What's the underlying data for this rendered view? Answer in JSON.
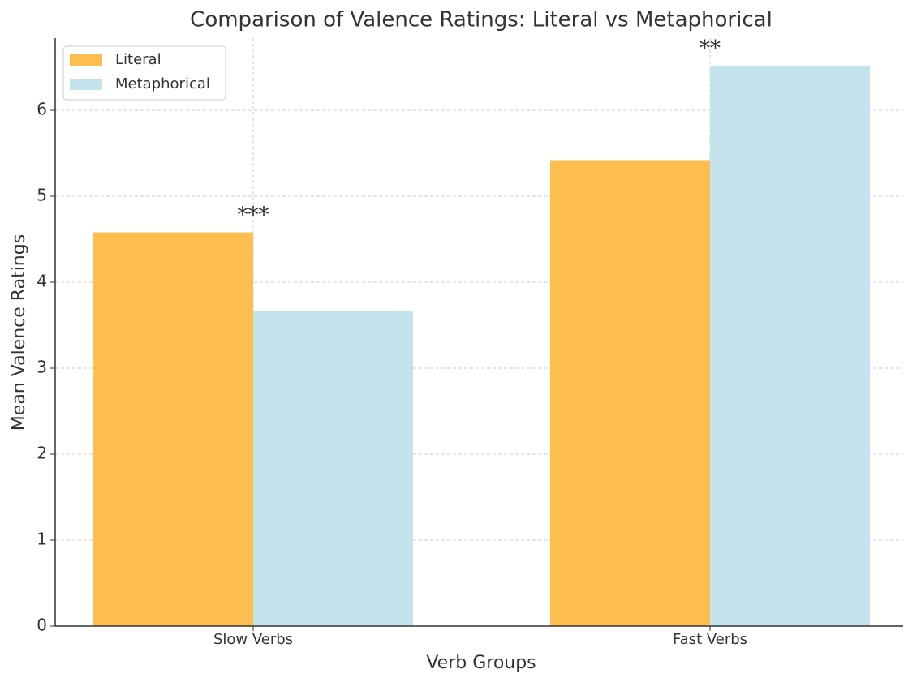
{
  "chart_data": {
    "type": "bar",
    "title": "Comparison of Valence Ratings: Literal vs Metaphorical",
    "xlabel": "Verb Groups",
    "ylabel": "Mean Valence Ratings",
    "categories": [
      "Slow Verbs",
      "Fast Verbs"
    ],
    "series": [
      {
        "name": "Literal",
        "color": "#fdbd4f",
        "values": [
          4.58,
          5.42
        ]
      },
      {
        "name": "Metaphorical",
        "color": "#c5e3ec",
        "values": [
          3.67,
          6.52
        ]
      }
    ],
    "annotations": [
      {
        "text": "***",
        "category": 0
      },
      {
        "text": "**",
        "category": 1
      }
    ],
    "ylim": [
      0,
      6.84
    ],
    "yticks": [
      0,
      1,
      2,
      3,
      4,
      5,
      6
    ],
    "grid": true,
    "legend": "upper left"
  }
}
